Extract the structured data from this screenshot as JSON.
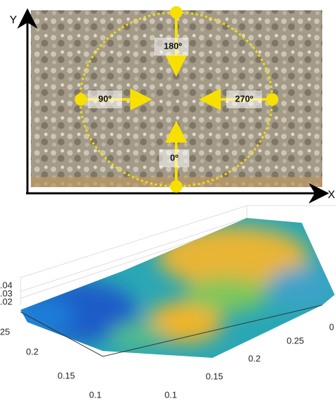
{
  "photo": {
    "axis_y": "Y",
    "axis_x": "X",
    "angles": {
      "top": "180º",
      "left": "90º",
      "right": "270º",
      "bottom": "0º"
    }
  },
  "surface_plot": {
    "z_ticks": [
      ".04",
      ".03",
      ".02"
    ],
    "left_ticks": [
      "25",
      "0.2",
      "0.15",
      "0.1"
    ],
    "right_ticks": [
      "0.1",
      "0.15",
      "0.2",
      "0.25",
      "0"
    ]
  }
}
